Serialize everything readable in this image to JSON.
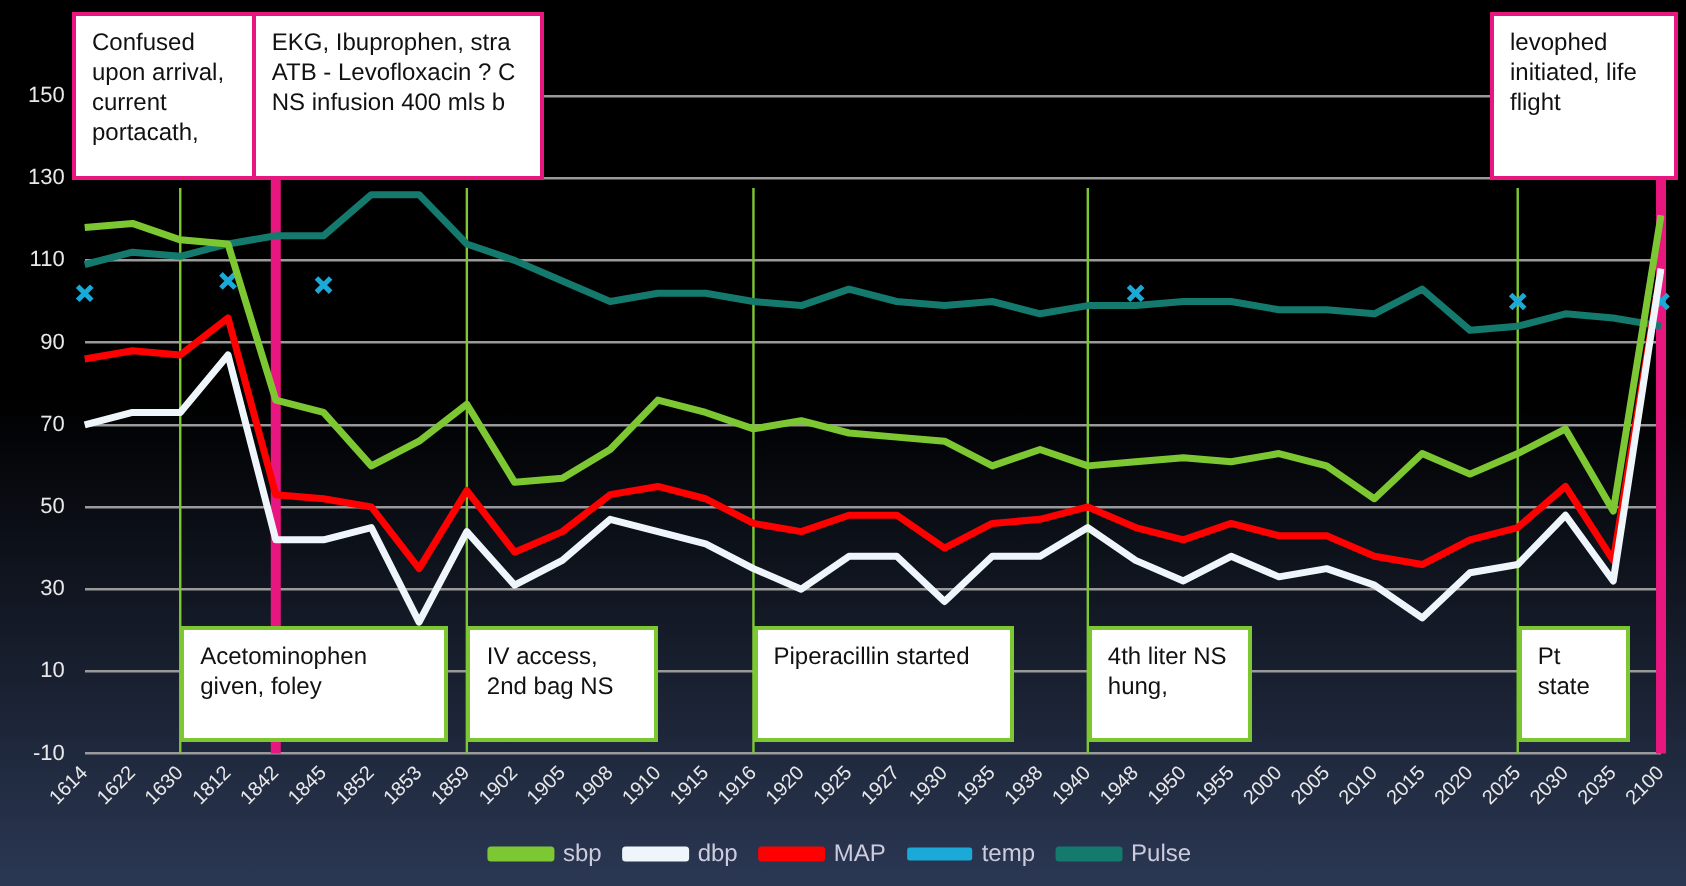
{
  "chart_data": {
    "type": "line",
    "categories": [
      "1614",
      "1622",
      "1630",
      "1812",
      "1842",
      "1845",
      "1852",
      "1853",
      "1859",
      "1902",
      "1905",
      "1908",
      "1910",
      "1915",
      "1916",
      "1920",
      "1925",
      "1927",
      "1930",
      "1935",
      "1938",
      "1940",
      "1948",
      "1950",
      "1955",
      "2000",
      "2005",
      "2010",
      "2015",
      "2020",
      "2025",
      "2030",
      "2035",
      "2100"
    ],
    "series": [
      {
        "name": "sbp",
        "color": "#7dc832",
        "values": [
          118,
          119,
          115,
          114,
          76,
          73,
          60,
          66,
          75,
          56,
          57,
          64,
          76,
          73,
          69,
          71,
          68,
          67,
          66,
          60,
          64,
          60,
          61,
          62,
          61,
          63,
          60,
          52,
          63,
          58,
          63,
          69,
          49,
          121
        ]
      },
      {
        "name": "dbp",
        "color": "#eef6fb",
        "values": [
          70,
          73,
          73,
          87,
          42,
          42,
          45,
          22,
          44,
          31,
          37,
          47,
          44,
          41,
          35,
          30,
          38,
          38,
          27,
          38,
          38,
          45,
          37,
          32,
          38,
          33,
          35,
          31,
          23,
          34,
          36,
          48,
          32,
          108
        ]
      },
      {
        "name": "MAP",
        "color": "#ff0000",
        "values": [
          86,
          88,
          87,
          96,
          53,
          52,
          50,
          35,
          54,
          39,
          44,
          53,
          55,
          52,
          46,
          44,
          48,
          48,
          40,
          46,
          47,
          50,
          45,
          42,
          46,
          43,
          43,
          38,
          36,
          42,
          45,
          55,
          37,
          108
        ]
      },
      {
        "name": "temp",
        "color": "#1ba9d8",
        "type": "scatter",
        "marker": "cross",
        "values": [
          102,
          null,
          null,
          105,
          null,
          104,
          null,
          null,
          null,
          null,
          null,
          null,
          null,
          null,
          null,
          null,
          null,
          null,
          null,
          null,
          null,
          null,
          102,
          null,
          null,
          null,
          null,
          null,
          null,
          null,
          100,
          null,
          null,
          100
        ]
      },
      {
        "name": "Pulse",
        "color": "#147a6e",
        "values": [
          109,
          112,
          111,
          114,
          116,
          116,
          126,
          126,
          114,
          110,
          105,
          100,
          102,
          102,
          100,
          99,
          103,
          100,
          99,
          100,
          97,
          99,
          99,
          100,
          100,
          98,
          98,
          97,
          103,
          93,
          94,
          97,
          96,
          94
        ]
      }
    ],
    "marker": "none",
    "ylim": [
      -10,
      150
    ],
    "yticks": [
      -10,
      10,
      30,
      50,
      70,
      90,
      110,
      130,
      150
    ],
    "grid": "y",
    "legend": "bottom",
    "ref_lines": [
      {
        "axis": "x",
        "value": "1842",
        "label": "EKG, Ibuprophen, stra ATB - Levofloxacin ? C NS infusion 400 mls b",
        "color": "#e8177f"
      },
      {
        "axis": "x",
        "value": "2100",
        "label": "levophed initiated, life flight",
        "color": "#e8177f"
      },
      {
        "axis": "x",
        "value": "1630",
        "label": "Acetominophen given, foley",
        "color": "#7dc832"
      },
      {
        "axis": "x",
        "value": "1859",
        "label": "IV access, 2nd bag NS",
        "color": "#7dc832"
      },
      {
        "axis": "x",
        "value": "1916",
        "label": "Piperacillin started",
        "color": "#7dc832"
      },
      {
        "axis": "x",
        "value": "1940",
        "label": "4th liter NS hung,",
        "color": "#7dc832"
      },
      {
        "axis": "x",
        "value": "2025",
        "label": "Pt state",
        "color": "#7dc832"
      }
    ],
    "annotations": [
      "Confused upon arrival, current portacath,"
    ]
  }
}
